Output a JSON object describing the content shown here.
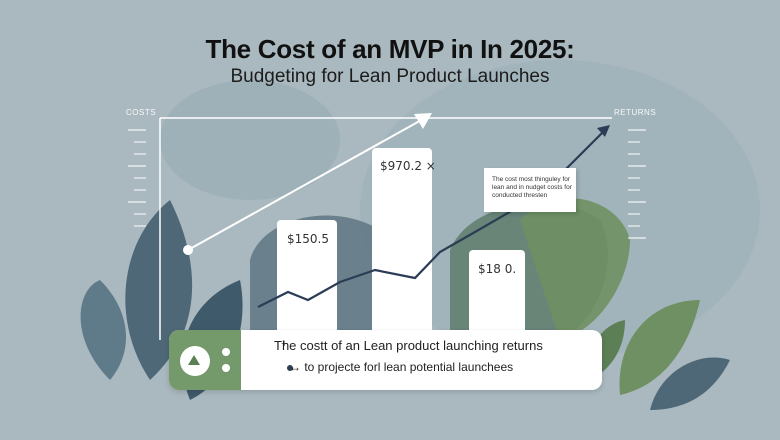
{
  "header": {
    "title": "The Cost of an MVP in  In 2025:",
    "subtitle": "Budgeting for Lean Product Launches"
  },
  "axes": {
    "left_word": "COSTS",
    "right_word": "RETURNS"
  },
  "bars": [
    {
      "label": "$150.5"
    },
    {
      "label": "$970.2 ×"
    },
    {
      "label": "$18 0."
    }
  ],
  "note": {
    "lines": [
      "The cost most thinguley for",
      "lean and in nudget costs for",
      "conducted thresten"
    ]
  },
  "panel": {
    "line1": "The costt of an Lean product launching returns",
    "line2": "↔ to projecte forl lean potential launchees",
    "plus_symbol": "+"
  },
  "icons": {
    "arrow": "arrow-up-right-icon",
    "badge": "triangle-play-icon"
  },
  "colors": {
    "background": "#a9b9bf",
    "leaf_dark": "#4e6878",
    "leaf_green": "#74996a",
    "trend_line": "#2b3d55",
    "bar": "#ffffff"
  }
}
